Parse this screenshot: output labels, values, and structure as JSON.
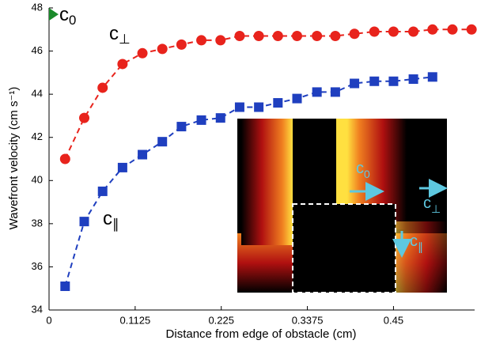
{
  "chart_data": {
    "type": "line",
    "xlabel": "Distance from edge of obstacle (cm)",
    "ylabel": "Wavefront velocity (cm s⁻¹)",
    "xlim": [
      0,
      0.556
    ],
    "ylim": [
      34,
      48
    ],
    "xticks": [
      0,
      0.1125,
      0.225,
      0.3375,
      0.45
    ],
    "yticks": [
      34,
      36,
      38,
      40,
      42,
      44,
      46,
      48
    ],
    "series": [
      {
        "color": "#e8231c",
        "marker": "circle",
        "x": [
          0.021,
          0.046,
          0.07,
          0.096,
          0.122,
          0.148,
          0.173,
          0.199,
          0.224,
          0.249,
          0.274,
          0.299,
          0.324,
          0.35,
          0.374,
          0.399,
          0.425,
          0.45,
          0.476,
          0.501,
          0.527,
          0.552
        ],
        "values": [
          41.0,
          42.9,
          44.3,
          45.4,
          45.9,
          46.1,
          46.3,
          46.5,
          46.5,
          46.7,
          46.7,
          46.7,
          46.7,
          46.7,
          46.7,
          46.8,
          46.9,
          46.9,
          46.9,
          47.0,
          47.0,
          47.0
        ]
      },
      {
        "color": "#1f3fbf",
        "marker": "square",
        "x": [
          0.021,
          0.046,
          0.07,
          0.096,
          0.122,
          0.148,
          0.173,
          0.199,
          0.224,
          0.249,
          0.274,
          0.299,
          0.324,
          0.35,
          0.374,
          0.399,
          0.425,
          0.45,
          0.476,
          0.501
        ],
        "values": [
          35.1,
          38.1,
          39.5,
          40.6,
          41.2,
          41.8,
          42.5,
          42.8,
          42.9,
          43.4,
          43.4,
          43.6,
          43.8,
          44.1,
          44.1,
          44.5,
          44.6,
          44.6,
          44.7,
          44.8
        ]
      },
      {
        "color": "#1a8a2a",
        "marker": "triangle",
        "x": [
          0
        ],
        "values": [
          47.7
        ]
      }
    ],
    "annotations": [
      {
        "text": "c",
        "sub": "0"
      },
      {
        "text": "c",
        "sub": "⊥"
      },
      {
        "text": "c",
        "sub": "∥"
      },
      {
        "text": "c",
        "sub": "0"
      },
      {
        "text": "c",
        "sub": "⊥"
      },
      {
        "text": "c",
        "sub": "∥"
      }
    ]
  }
}
